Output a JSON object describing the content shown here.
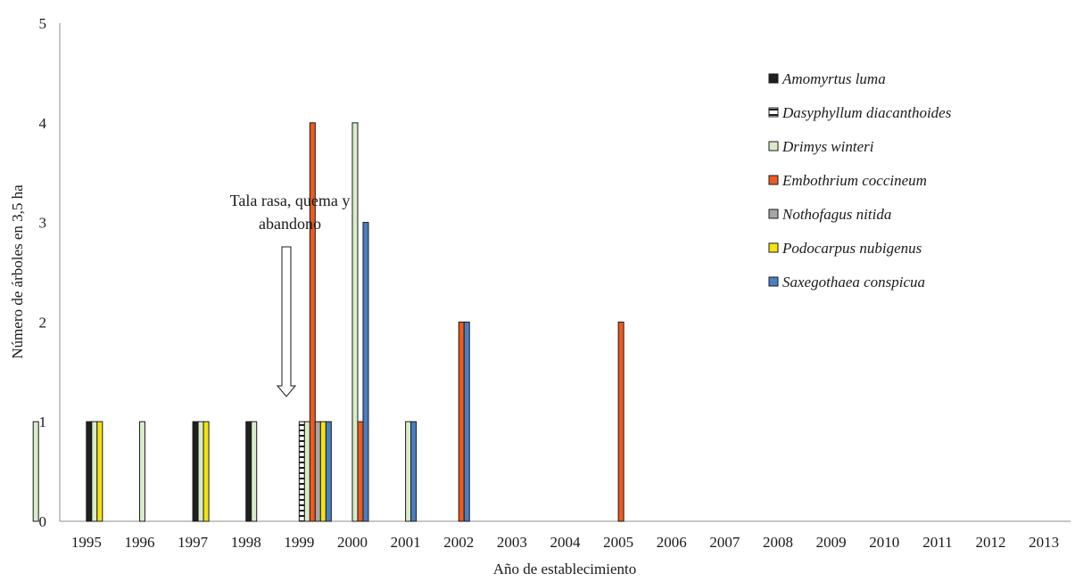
{
  "chart_data": {
    "type": "bar",
    "xlabel": "Año de establecimiento",
    "ylabel": "Número de árboles en 3,5 ha",
    "ylim": [
      0,
      5
    ],
    "yticks": [
      "0",
      "1",
      "2",
      "3",
      "4",
      "5"
    ],
    "grid": false,
    "legend_position": "right",
    "categories": [
      "1995",
      "1996",
      "1997",
      "1998",
      "1999",
      "2000",
      "2001",
      "2002",
      "2003",
      "2004",
      "2005",
      "2006",
      "2007",
      "2008",
      "2009",
      "2010",
      "2011",
      "2012",
      "2013"
    ],
    "series": [
      {
        "name": "Amomyrtus luma",
        "color": "#1f1f1f",
        "pattern": "solid",
        "values": [
          0,
          1,
          0,
          1,
          1,
          0,
          0,
          0,
          0,
          0,
          0,
          0,
          0,
          0,
          0,
          0,
          0,
          0,
          0
        ]
      },
      {
        "name": "Dasyphyllum diacanthoides",
        "color": "#ffffff",
        "pattern": "hatched",
        "values": [
          0,
          0,
          0,
          0,
          0,
          1,
          0,
          0,
          0,
          0,
          0,
          0,
          0,
          0,
          0,
          0,
          0,
          0,
          0
        ]
      },
      {
        "name": "Drimys winteri",
        "color": "#d9ecc9",
        "pattern": "solid",
        "values": [
          1,
          1,
          1,
          1,
          1,
          1,
          4,
          1,
          0,
          0,
          0,
          0,
          0,
          0,
          0,
          0,
          0,
          0,
          0
        ]
      },
      {
        "name": "Embothrium coccineum",
        "color": "#ee5a1f",
        "pattern": "solid",
        "values": [
          0,
          0,
          0,
          0,
          0,
          4,
          1,
          0,
          2,
          0,
          0,
          2,
          0,
          0,
          0,
          0,
          0,
          0,
          0
        ]
      },
      {
        "name": "Nothofagus nitida",
        "color": "#a6a6a6",
        "pattern": "solid",
        "values": [
          0,
          0,
          0,
          0,
          0,
          1,
          0,
          0,
          0,
          0,
          0,
          0,
          0,
          0,
          0,
          0,
          0,
          0,
          0
        ]
      },
      {
        "name": "Podocarpus nubigenus",
        "color": "#f5e312",
        "pattern": "solid",
        "values": [
          0,
          1,
          0,
          1,
          0,
          1,
          0,
          0,
          0,
          0,
          0,
          0,
          0,
          0,
          0,
          0,
          0,
          0,
          0
        ]
      },
      {
        "name": "Saxegothaea conspicua",
        "color": "#4a7fc1",
        "pattern": "solid",
        "values": [
          0,
          0,
          0,
          0,
          0,
          1,
          3,
          1,
          2,
          0,
          0,
          0,
          0,
          0,
          0,
          0,
          0,
          0,
          0
        ]
      }
    ],
    "annotations": [
      {
        "text_lines": [
          "Tala rasa, quema y",
          "abandono"
        ],
        "points_to": "1999",
        "type": "arrow-down"
      }
    ]
  }
}
